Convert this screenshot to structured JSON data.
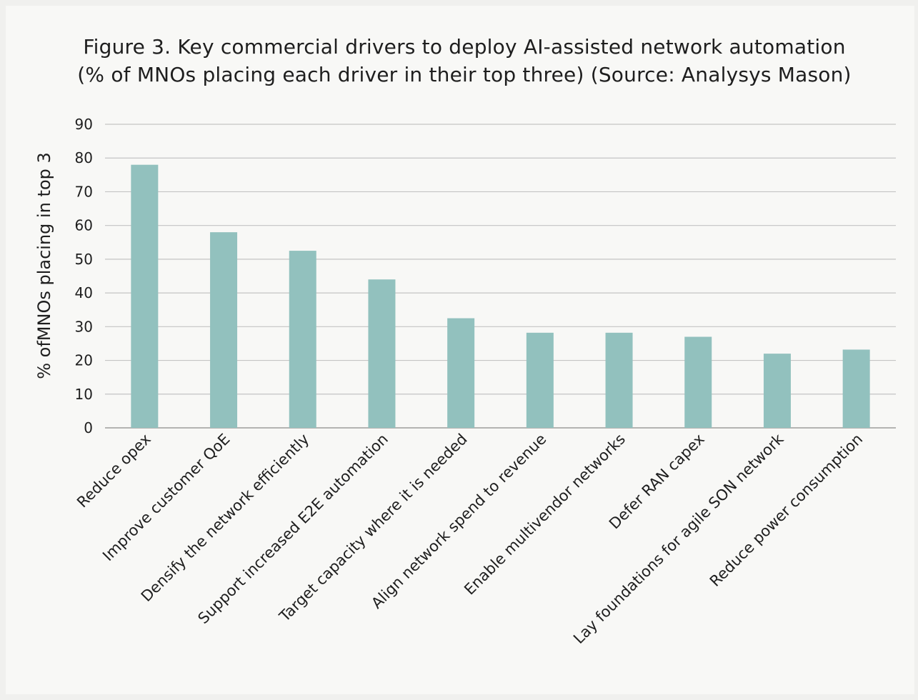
{
  "chart_data": {
    "type": "bar",
    "title": "Figure 3. Key commercial drivers to deploy AI-assisted network automation",
    "subtitle": "(% of MNOs placing each driver in their top three) (Source: Analysys Mason)",
    "ylabel": "% ofMNOs placing in top 3",
    "xlabel": "",
    "ylim": [
      0,
      90
    ],
    "yticks": [
      0,
      10,
      20,
      30,
      40,
      50,
      60,
      70,
      80,
      90
    ],
    "grid": true,
    "categories": [
      "Reduce opex",
      "Improve customer QoE",
      "Densify the network efficiently",
      "Support increased E2E automation",
      "Target capacity where it is needed",
      "Align network spend to revenue",
      "Enable  multivendor networks",
      "Defer RAN capex",
      "Lay foundations for agile SON network",
      "Reduce power consumption"
    ],
    "values": [
      78,
      58,
      52.5,
      44,
      32.5,
      28.2,
      28.2,
      27,
      22,
      23.2
    ],
    "bar_color": "#92c1be"
  }
}
